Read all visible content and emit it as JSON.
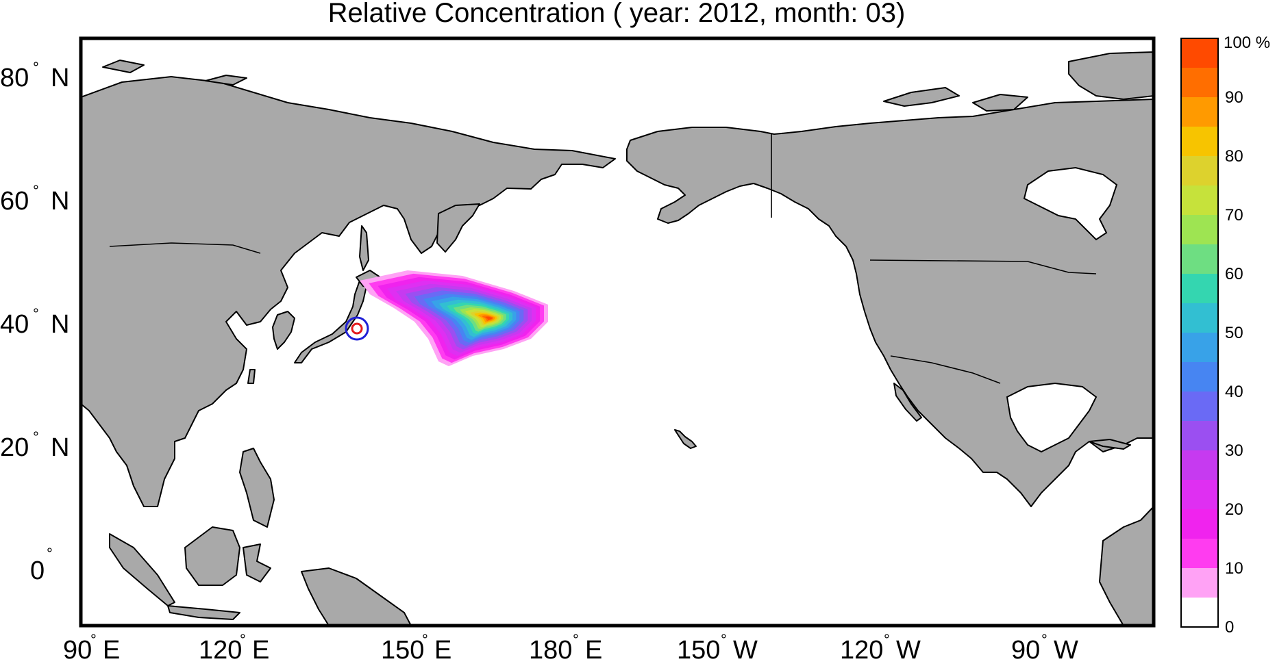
{
  "title": "Relative Concentration ( year: 2012, month: 03)",
  "map": {
    "x_ticks": [
      {
        "label": "90",
        "hemi": "E"
      },
      {
        "label": "120",
        "hemi": "E"
      },
      {
        "label": "150",
        "hemi": "E"
      },
      {
        "label": "180",
        "hemi": "E"
      },
      {
        "label": "150",
        "hemi": "W"
      },
      {
        "label": "120",
        "hemi": "W"
      },
      {
        "label": "90",
        "hemi": "W"
      }
    ],
    "y_ticks": [
      {
        "label": "80",
        "hemi": "N"
      },
      {
        "label": "60",
        "hemi": "N"
      },
      {
        "label": "40",
        "hemi": "N"
      },
      {
        "label": "20",
        "hemi": "N"
      },
      {
        "label": "0",
        "hemi": ""
      }
    ],
    "land_color": "#a9a9a9",
    "source_marker": {
      "outer_color": "#1f1fd6",
      "inner_color": "#e41a1c",
      "name": "source-location"
    }
  },
  "colorbar": {
    "unit_label": "100 %",
    "tick_labels": [
      "90",
      "80",
      "70",
      "60",
      "50",
      "40",
      "30",
      "20",
      "10",
      "0"
    ],
    "levels_top_to_bottom": [
      "#ff4a00",
      "#ff6e00",
      "#ff9a00",
      "#f7c400",
      "#ddd22d",
      "#c6e23b",
      "#9ee452",
      "#6ede82",
      "#34d6b0",
      "#32bfd2",
      "#38a2e8",
      "#4785f2",
      "#6a6af5",
      "#9b4ff1",
      "#c63af0",
      "#df2ff2",
      "#f023ee",
      "#ff3cf0",
      "#ffa2f5",
      "#ffffff"
    ]
  }
}
